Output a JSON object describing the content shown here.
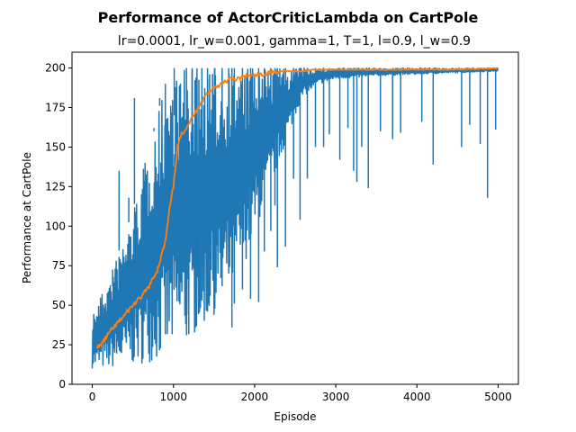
{
  "chart_data": {
    "type": "line",
    "title": "Performance of ActorCriticLambda on CartPole",
    "subtitle": "lr=0.0001, lr_w=0.001, gamma=1, T=1, l=0.9, l_w=0.9",
    "xlabel": "Episode",
    "ylabel": "Performance at CartPole",
    "xlim": [
      -250,
      5250
    ],
    "ylim": [
      0,
      210
    ],
    "xticks": [
      0,
      1000,
      2000,
      3000,
      4000,
      5000
    ],
    "yticks": [
      0,
      25,
      50,
      75,
      100,
      125,
      150,
      175,
      200
    ],
    "grid": false,
    "legend": "none",
    "colors": {
      "raw": "#1f77b4",
      "smoothed": "#ff7f0e"
    },
    "series": [
      {
        "x": [
          0,
          100,
          200,
          300,
          400,
          500,
          600,
          700,
          800,
          900,
          1000,
          1100,
          1200,
          1300,
          1400,
          1500,
          1600,
          1700,
          1800,
          1900,
          2000,
          2100,
          2200,
          2300,
          2400,
          2500,
          2600,
          2800,
          3000,
          3500,
          4000,
          4500,
          5000
        ],
        "low": [
          10,
          10,
          10,
          11,
          11,
          12,
          13,
          14,
          15,
          17,
          20,
          24,
          28,
          33,
          38,
          44,
          50,
          58,
          68,
          80,
          95,
          110,
          125,
          140,
          155,
          170,
          182,
          190,
          193,
          195,
          196,
          197,
          198
        ],
        "high": [
          45,
          55,
          65,
          80,
          95,
          110,
          130,
          150,
          170,
          190,
          200,
          200,
          200,
          200,
          200,
          200,
          200,
          200,
          200,
          200,
          200,
          200,
          200,
          200,
          200,
          200,
          200,
          200,
          200,
          200,
          200,
          200,
          200
        ],
        "dips": [
          [
            120,
            40
          ],
          [
            250,
            62
          ],
          [
            330,
            135
          ],
          [
            450,
            118
          ],
          [
            520,
            181
          ],
          [
            650,
            108
          ],
          [
            760,
            160
          ],
          [
            830,
            181
          ],
          [
            900,
            44
          ],
          [
            1010,
            170
          ],
          [
            1160,
            31
          ],
          [
            1230,
            72
          ],
          [
            1350,
            53
          ],
          [
            1420,
            46
          ],
          [
            1510,
            48
          ],
          [
            1600,
            62
          ],
          [
            1680,
            70
          ],
          [
            1720,
            36
          ],
          [
            1750,
            51
          ],
          [
            1850,
            60
          ],
          [
            1950,
            54
          ],
          [
            2050,
            52
          ],
          [
            2120,
            84
          ],
          [
            2200,
            97
          ],
          [
            2250,
            113
          ],
          [
            2280,
            74
          ],
          [
            2380,
            87
          ],
          [
            2480,
            130
          ],
          [
            2560,
            104
          ],
          [
            2650,
            130
          ],
          [
            2750,
            150
          ],
          [
            2850,
            150
          ],
          [
            2920,
            158
          ],
          [
            3050,
            142
          ],
          [
            3150,
            162
          ],
          [
            3220,
            135
          ],
          [
            3260,
            128
          ],
          [
            3320,
            150
          ],
          [
            3400,
            124
          ],
          [
            3550,
            160
          ],
          [
            3700,
            155
          ],
          [
            3800,
            159
          ],
          [
            4060,
            166
          ],
          [
            4200,
            139
          ],
          [
            4550,
            150
          ],
          [
            4650,
            164
          ],
          [
            4780,
            152
          ],
          [
            4870,
            118
          ],
          [
            4970,
            161
          ]
        ]
      },
      {
        "x": [
          60,
          80,
          100,
          150,
          200,
          300,
          400,
          500,
          600,
          700,
          800,
          900,
          950,
          1000,
          1050,
          1100,
          1150,
          1200,
          1250,
          1300,
          1400,
          1500,
          1600,
          1700,
          1800,
          1900,
          2000,
          2100,
          2200,
          2300,
          2400,
          2500,
          2600,
          2700,
          3000,
          3500,
          4000,
          4500,
          5000
        ],
        "y": [
          24,
          23,
          25,
          28,
          32,
          38,
          44,
          50,
          55,
          62,
          72,
          90,
          110,
          125,
          150,
          158,
          162,
          166,
          170,
          175,
          183,
          188,
          190,
          193,
          193,
          195,
          195,
          196,
          197,
          198,
          198,
          198,
          198,
          199,
          199,
          199,
          199,
          199,
          200
        ]
      }
    ]
  }
}
